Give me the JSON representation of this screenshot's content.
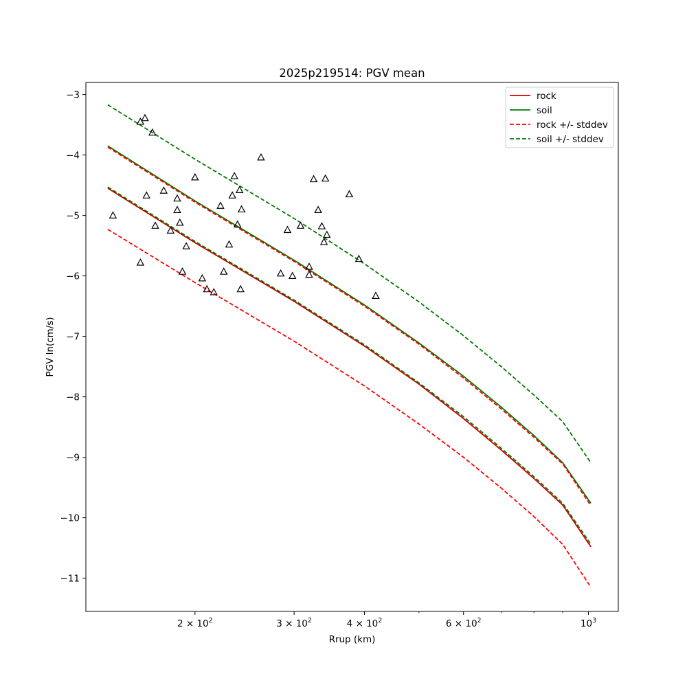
{
  "chart_data": {
    "type": "line",
    "title": "2025p219514: PGV mean",
    "xlabel": "Rrup (km)",
    "ylabel": "PGV ln(cm/s)",
    "xscale": "log",
    "xlim": [
      128,
      1130
    ],
    "ylim": [
      -11.55,
      -2.8
    ],
    "x_ticks": [
      {
        "value": 200,
        "label": "2 × 10",
        "exp": "2"
      },
      {
        "value": 300,
        "label": "3 × 10",
        "exp": "2"
      },
      {
        "value": 400,
        "label": "4 × 10",
        "exp": "2"
      },
      {
        "value": 600,
        "label": "6 × 10",
        "exp": "2"
      },
      {
        "value": 1000,
        "label": "10",
        "exp": "3"
      }
    ],
    "x_minor_ticks": [
      500,
      700,
      800,
      900
    ],
    "y_ticks": [
      {
        "value": -3,
        "label": "−3"
      },
      {
        "value": -4,
        "label": "−4"
      },
      {
        "value": -5,
        "label": "−5"
      },
      {
        "value": -6,
        "label": "−6"
      },
      {
        "value": -7,
        "label": "−7"
      },
      {
        "value": -8,
        "label": "−8"
      },
      {
        "value": -9,
        "label": "−9"
      },
      {
        "value": -10,
        "label": "−10"
      },
      {
        "value": -11,
        "label": "−11"
      }
    ],
    "grid": false,
    "legend_position": "top-right",
    "series": [
      {
        "name": "rock",
        "color": "#d00000",
        "style": "solid",
        "x": [
          140,
          200,
          300,
          400,
          500,
          600,
          700,
          800,
          900,
          1010
        ],
        "y": [
          -4.55,
          -5.45,
          -6.42,
          -7.16,
          -7.79,
          -8.36,
          -8.88,
          -9.35,
          -9.79,
          -10.48
        ]
      },
      {
        "name": "soil",
        "color": "#007800",
        "style": "solid",
        "x": [
          140,
          200,
          300,
          400,
          500,
          600,
          700,
          800,
          900,
          1010
        ],
        "y": [
          -3.85,
          -4.76,
          -5.74,
          -6.48,
          -7.11,
          -7.66,
          -8.17,
          -8.64,
          -9.09,
          -9.76
        ]
      },
      {
        "name": "rock +/- stddev",
        "color": "#ff0000",
        "style": "dashed",
        "x": [
          140,
          200,
          300,
          400,
          500,
          600,
          700,
          800,
          900,
          1010
        ],
        "y": [
          -3.87,
          -4.78,
          -5.76,
          -6.5,
          -7.13,
          -7.69,
          -8.2,
          -8.67,
          -9.11,
          -9.8
        ]
      },
      {
        "name": "",
        "color": "#ff0000",
        "style": "dashed",
        "x": [
          140,
          200,
          300,
          400,
          500,
          600,
          700,
          800,
          900,
          1010
        ],
        "y": [
          -5.23,
          -6.11,
          -7.08,
          -7.82,
          -8.45,
          -9.0,
          -9.51,
          -9.98,
          -10.44,
          -11.15
        ]
      },
      {
        "name": "soil +/- stddev",
        "color": "#007800",
        "style": "dashed",
        "x": [
          140,
          200,
          300,
          400,
          500,
          600,
          700,
          800,
          900,
          1010
        ],
        "y": [
          -3.17,
          -4.07,
          -5.05,
          -5.8,
          -6.43,
          -6.99,
          -7.5,
          -7.97,
          -8.41,
          -9.09
        ]
      },
      {
        "name": "",
        "color": "#007800",
        "style": "dashed",
        "x": [
          140,
          200,
          300,
          400,
          500,
          600,
          700,
          800,
          900,
          1010
        ],
        "y": [
          -4.53,
          -5.43,
          -6.4,
          -7.14,
          -7.77,
          -8.33,
          -8.85,
          -9.32,
          -9.76,
          -10.44
        ]
      }
    ],
    "observations": {
      "marker": "triangle-open",
      "color": "#000000",
      "points": [
        [
          143,
          -5.0
        ],
        [
          160,
          -3.45
        ],
        [
          163,
          -3.39
        ],
        [
          168,
          -3.63
        ],
        [
          160,
          -5.78
        ],
        [
          164,
          -4.67
        ],
        [
          170,
          -5.17
        ],
        [
          176,
          -4.59
        ],
        [
          181,
          -5.25
        ],
        [
          186,
          -4.72
        ],
        [
          186,
          -4.91
        ],
        [
          188,
          -5.12
        ],
        [
          190,
          -5.93
        ],
        [
          193,
          -5.51
        ],
        [
          200,
          -4.37
        ],
        [
          206,
          -6.04
        ],
        [
          210,
          -6.22
        ],
        [
          216,
          -6.27
        ],
        [
          222,
          -4.84
        ],
        [
          225,
          -5.93
        ],
        [
          230,
          -5.48
        ],
        [
          233,
          -4.67
        ],
        [
          235,
          -4.35
        ],
        [
          238,
          -5.15
        ],
        [
          240,
          -4.58
        ],
        [
          242,
          -4.9
        ],
        [
          241,
          -6.22
        ],
        [
          262,
          -4.04
        ],
        [
          284,
          -5.96
        ],
        [
          292,
          -5.24
        ],
        [
          298,
          -6.0
        ],
        [
          308,
          -5.17
        ],
        [
          319,
          -5.85
        ],
        [
          319,
          -5.98
        ],
        [
          325,
          -4.4
        ],
        [
          331,
          -4.91
        ],
        [
          336,
          -5.18
        ],
        [
          339,
          -5.44
        ],
        [
          341,
          -4.39
        ],
        [
          343,
          -5.32
        ],
        [
          376,
          -4.65
        ],
        [
          391,
          -5.72
        ],
        [
          419,
          -6.33
        ]
      ]
    }
  }
}
